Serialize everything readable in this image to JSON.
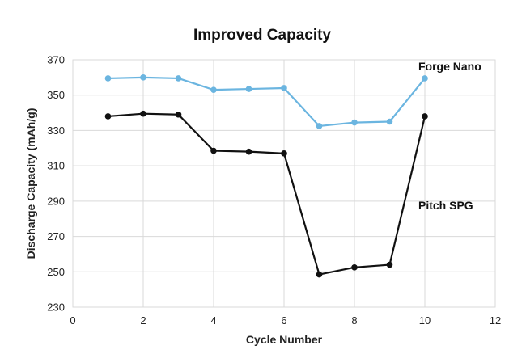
{
  "chart_data": {
    "type": "line",
    "title": "Improved Capacity",
    "xlabel": "Cycle Number",
    "ylabel": "Discharge Capacity (mAh/g)",
    "xlim": [
      0,
      12
    ],
    "ylim": [
      230,
      370
    ],
    "xticks": [
      "0",
      "2",
      "4",
      "6",
      "8",
      "10",
      "12"
    ],
    "yticks": [
      "230",
      "250",
      "270",
      "290",
      "310",
      "330",
      "350",
      "370"
    ],
    "grid": true,
    "x": [
      1,
      2,
      3,
      4,
      5,
      6,
      7,
      8,
      9,
      10
    ],
    "series": [
      {
        "name": "Forge Nano",
        "color": "#6bb5e0",
        "values": [
          359.5,
          360,
          359.5,
          353,
          353.5,
          354,
          332.5,
          334.5,
          335,
          359.5
        ]
      },
      {
        "name": "Pitch SPG",
        "color": "#111111",
        "values": [
          338,
          339.5,
          339,
          318.5,
          318,
          317,
          248.5,
          252.5,
          254,
          338
        ]
      }
    ]
  }
}
